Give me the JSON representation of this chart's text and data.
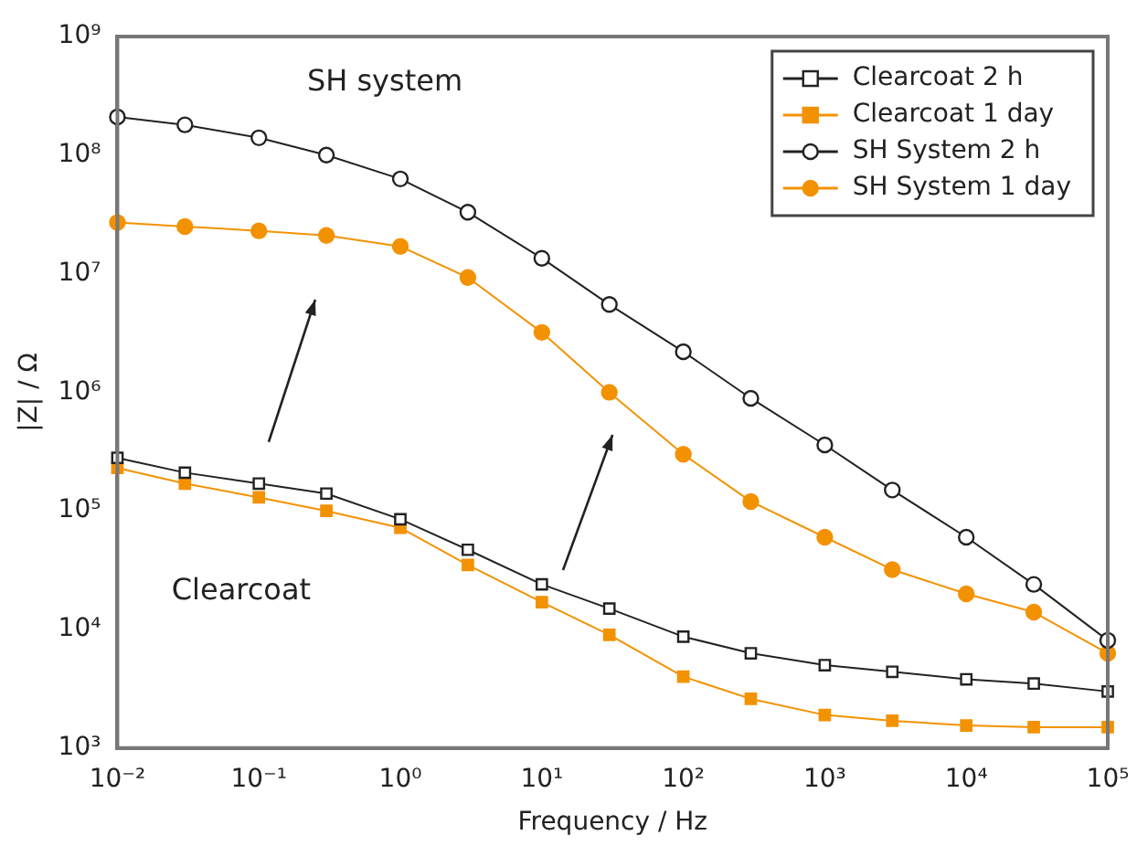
{
  "chart_data": {
    "type": "line",
    "xlabel": "Frequency / Hz",
    "ylabel": "|Z| / Ω",
    "log": "xy",
    "grid": false,
    "legend": "top right",
    "line_style": "solid",
    "xlim": [
      0.01,
      100000
    ],
    "ylim": [
      1000,
      1000000000
    ],
    "xticks": [
      {
        "value": 0.01,
        "label": "10⁻²"
      },
      {
        "value": 0.1,
        "label": "10⁻¹"
      },
      {
        "value": 1,
        "label": "10⁰"
      },
      {
        "value": 10,
        "label": "10¹"
      },
      {
        "value": 100,
        "label": "10²"
      },
      {
        "value": 1000,
        "label": "10³"
      },
      {
        "value": 10000,
        "label": "10⁴"
      },
      {
        "value": 100000,
        "label": "10⁵"
      }
    ],
    "yticks": [
      {
        "value": 1000,
        "label": "10³"
      },
      {
        "value": 10000,
        "label": "10⁴"
      },
      {
        "value": 100000,
        "label": "10⁵"
      },
      {
        "value": 1000000,
        "label": "10⁶"
      },
      {
        "value": 10000000,
        "label": "10⁷"
      },
      {
        "value": 100000000,
        "label": "10⁸"
      },
      {
        "value": 1000000000,
        "label": "10⁹"
      }
    ],
    "x": [
      0.01,
      0.03,
      0.1,
      0.3,
      1,
      3,
      10,
      30,
      100,
      300,
      1000,
      3000,
      10000,
      30000,
      100000
    ],
    "series": [
      {
        "name": "Clearcoat 2 h",
        "color": "#222222",
        "marker": "square",
        "values": [
          280000,
          210000,
          170000,
          140000,
          85000,
          47000,
          24000,
          15000,
          8700,
          6300,
          5000,
          4400,
          3800,
          3500,
          3000
        ]
      },
      {
        "name": "Clearcoat 1 day",
        "color": "#f39200",
        "marker": "square",
        "values": [
          230000,
          170000,
          130000,
          100000,
          72000,
          35000,
          17000,
          9000,
          4000,
          2600,
          1900,
          1700,
          1550,
          1500,
          1500
        ]
      },
      {
        "name": "SH System 2 h",
        "color": "#222222",
        "marker": "circle",
        "values": [
          210000000,
          180000000,
          140000000,
          100000000,
          63000000,
          33000000,
          13500000,
          5500000,
          2200000,
          890000,
          360000,
          150000,
          60000,
          24000,
          8100
        ]
      },
      {
        "name": "SH System 1 day",
        "color": "#f39200",
        "marker": "circle",
        "values": [
          27000000,
          25000000,
          23000000,
          21000000,
          17000000,
          9300000,
          3200000,
          1000000,
          300000,
          120000,
          60000,
          32000,
          20000,
          14000,
          6300
        ]
      }
    ],
    "annotations": [
      "SH system",
      "Clearcoat"
    ]
  }
}
